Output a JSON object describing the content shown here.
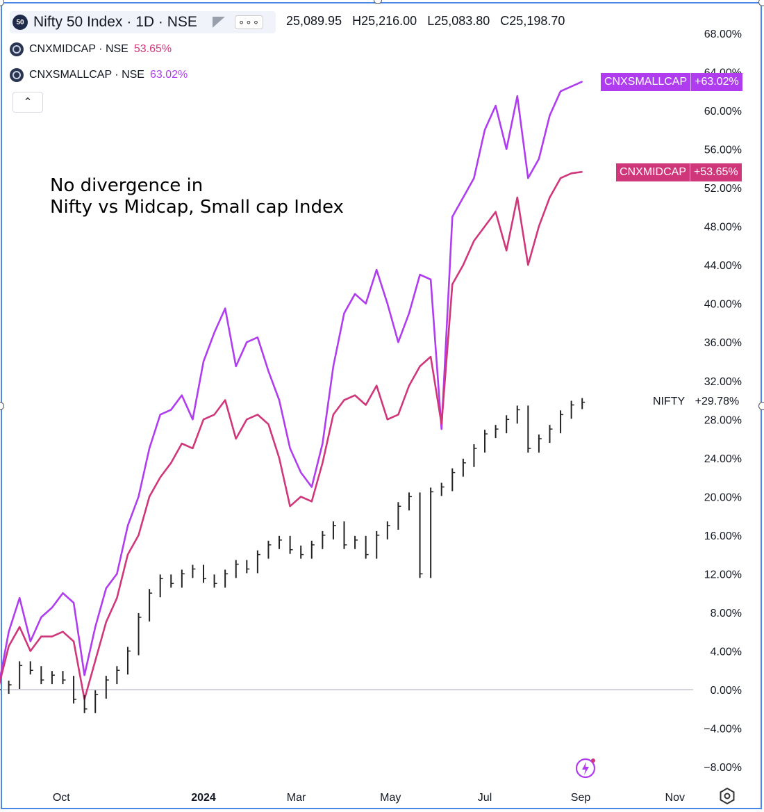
{
  "header": {
    "main_symbol": "Nifty 50 Index",
    "main_meta": "· 1D · NSE",
    "icon_text": "50",
    "ohlc": [
      "25,089.95",
      "H25,216.00",
      "L25,083.80",
      "C25,198.70"
    ],
    "more_label": "∘∘∘"
  },
  "legend": [
    {
      "symbol": "CNXMIDCAP · NSE",
      "value": "53.65%"
    },
    {
      "symbol": "CNXSMALLCAP · NSE",
      "value": "63.02%"
    }
  ],
  "collapse_label": "⌃",
  "annotation": {
    "line1": "No divergence in",
    "line2": "Nifty vs Midcap, Small cap Index"
  },
  "tags": {
    "small": {
      "name": "CNXSMALLCAP",
      "value": "+63.02%"
    },
    "mid": {
      "name": "CNXMIDCAP",
      "value": "+53.65%"
    },
    "nifty": {
      "name": "NIFTY",
      "value": "+29.78%"
    }
  },
  "colors": {
    "small": "#b03cf0",
    "mid": "#d0367a",
    "nifty": "#222222",
    "axis_text": "#131722"
  },
  "icons": {
    "sparkle": "sparkle-icon",
    "settings": "settings-icon"
  },
  "chart_data": {
    "type": "line",
    "y_unit": "%",
    "ylim": [
      -9,
      70
    ],
    "x_ticks": [
      "Oct",
      "2024",
      "Mar",
      "May",
      "Jul",
      "Sep",
      "Nov"
    ],
    "y_ticks": [
      "68.00%",
      "64.00%",
      "60.00%",
      "56.00%",
      "52.00%",
      "48.00%",
      "44.00%",
      "40.00%",
      "36.00%",
      "32.00%",
      "28.00%",
      "24.00%",
      "20.00%",
      "16.00%",
      "12.00%",
      "8.00%",
      "4.00%",
      "0.00%",
      "−4.00%",
      "−8.00%"
    ],
    "grid": false,
    "x": [
      "2023-08-21",
      "2023-08-28",
      "2023-09-04",
      "2023-09-11",
      "2023-09-18",
      "2023-09-25",
      "2023-10-02",
      "2023-10-09",
      "2023-10-16",
      "2023-10-23",
      "2023-10-30",
      "2023-11-06",
      "2023-11-13",
      "2023-11-20",
      "2023-11-27",
      "2023-12-04",
      "2023-12-11",
      "2023-12-18",
      "2023-12-25",
      "2024-01-01",
      "2024-01-08",
      "2024-01-15",
      "2024-01-22",
      "2024-01-29",
      "2024-02-05",
      "2024-02-12",
      "2024-02-19",
      "2024-02-26",
      "2024-03-04",
      "2024-03-11",
      "2024-03-18",
      "2024-03-25",
      "2024-04-01",
      "2024-04-08",
      "2024-04-15",
      "2024-04-22",
      "2024-04-29",
      "2024-05-06",
      "2024-05-13",
      "2024-05-20",
      "2024-05-27",
      "2024-06-03",
      "2024-06-10",
      "2024-06-17",
      "2024-06-24",
      "2024-07-01",
      "2024-07-08",
      "2024-07-15",
      "2024-07-22",
      "2024-07-29",
      "2024-08-05",
      "2024-08-12",
      "2024-08-19",
      "2024-08-26",
      "2024-09-02"
    ],
    "series": [
      {
        "name": "CNXSMALLCAP",
        "values": [
          0.0,
          6.0,
          9.5,
          5.0,
          7.5,
          8.5,
          10.0,
          9.0,
          1.5,
          6.5,
          10.5,
          12.0,
          17.0,
          20.0,
          25.0,
          28.5,
          29.0,
          30.5,
          28.0,
          34.0,
          37.0,
          39.5,
          33.5,
          36.0,
          36.5,
          33.0,
          30.0,
          25.0,
          22.5,
          21.0,
          25.5,
          33.5,
          39.0,
          41.0,
          40.0,
          43.5,
          40.0,
          36.0,
          39.0,
          43.0,
          42.5,
          27.0,
          49.0,
          51.0,
          53.0,
          58.0,
          60.5,
          56.0,
          61.5,
          53.0,
          55.0,
          59.5,
          62.0,
          62.5,
          63.0
        ]
      },
      {
        "name": "CNXMIDCAP",
        "values": [
          0.0,
          4.5,
          6.5,
          4.0,
          5.5,
          5.5,
          6.0,
          5.0,
          -1.0,
          3.0,
          7.0,
          9.5,
          14.0,
          16.0,
          20.0,
          22.0,
          23.5,
          25.5,
          25.0,
          28.0,
          28.5,
          30.0,
          26.0,
          28.0,
          28.5,
          27.5,
          24.0,
          19.0,
          20.0,
          19.5,
          23.5,
          28.5,
          30.0,
          30.5,
          29.5,
          31.5,
          28.0,
          28.5,
          31.5,
          33.5,
          34.5,
          27.5,
          42.0,
          44.0,
          46.5,
          48.0,
          49.5,
          45.5,
          51.0,
          44.0,
          48.0,
          51.0,
          53.0,
          53.5,
          53.65
        ]
      },
      {
        "name": "NIFTY",
        "values": [
          0.0,
          0.5,
          2.5,
          2.0,
          1.0,
          1.5,
          1.0,
          -1.0,
          -2.0,
          -0.5,
          1.0,
          2.0,
          4.0,
          7.5,
          10.0,
          11.5,
          11.0,
          12.0,
          12.5,
          11.5,
          11.0,
          12.0,
          13.0,
          12.5,
          14.0,
          15.0,
          15.5,
          14.5,
          14.0,
          15.0,
          16.0,
          17.0,
          15.0,
          15.5,
          14.0,
          16.0,
          17.0,
          19.0,
          20.0,
          12.0,
          20.5,
          21.0,
          22.5,
          23.5,
          25.0,
          26.5,
          27.0,
          28.0,
          29.0,
          25.0,
          26.0,
          27.0,
          28.5,
          29.5,
          29.78
        ]
      }
    ]
  }
}
